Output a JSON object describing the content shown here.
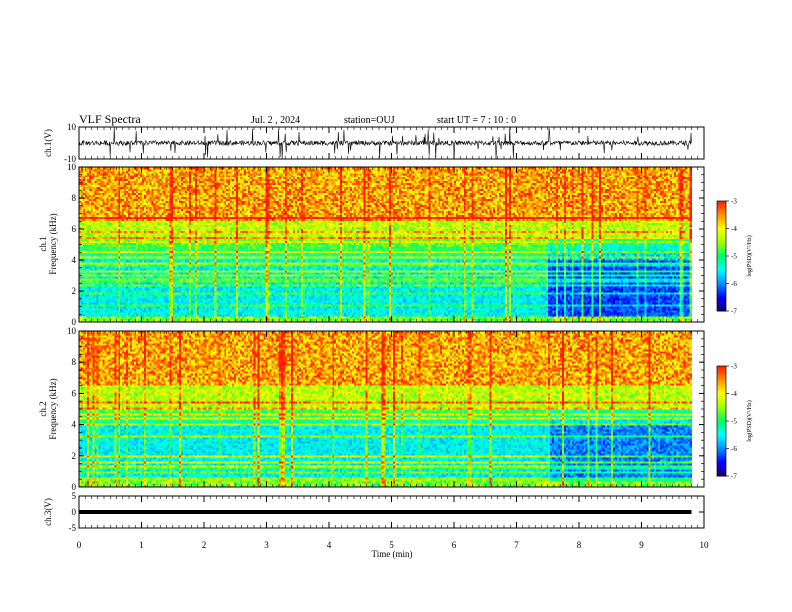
{
  "header": {
    "title": "VLF Spectra",
    "date": "Jul. 2 , 2024",
    "station": "station=OUJ",
    "start": "start UT =  7 : 10 : 0"
  },
  "colors": {
    "bg": "#ffffff",
    "axis": "#000000",
    "trace": "#000000",
    "colormap": [
      "#1a0070",
      "#0000ff",
      "#0090ff",
      "#00ffff",
      "#00ff60",
      "#a0ff00",
      "#ffff00",
      "#ff9000",
      "#ff1a00",
      "#ffffff"
    ]
  },
  "chart_data": [
    {
      "id": "ch1-waveform",
      "type": "line",
      "ylabel": "ch.1(V)",
      "ylim": [
        -10,
        10
      ],
      "yticks": [
        "10",
        "-10"
      ],
      "xlim": [
        0,
        10
      ],
      "baseline": 0,
      "amplitude_typical": 1.5,
      "spike_max": 10
    },
    {
      "id": "ch1-spectrogram",
      "type": "heatmap",
      "ylabel": "ch.1",
      "ylabel2": "Frequency (kHz)",
      "ylim": [
        0,
        10
      ],
      "yticks": [
        "0",
        "2",
        "4",
        "6",
        "8",
        "10"
      ],
      "xlim": [
        0,
        10
      ],
      "data_end_min": 9.8,
      "colorbar": {
        "label": "log(PSD)(V²/Hz)",
        "range": [
          -7,
          -3
        ],
        "ticks": [
          "-3",
          "-4",
          "-5",
          "-6",
          "-7"
        ]
      },
      "low_band_khz": [
        0,
        4
      ],
      "high_band_khz": [
        6,
        10
      ]
    },
    {
      "id": "ch2-spectrogram",
      "type": "heatmap",
      "ylabel": "ch.2",
      "ylabel2": "Frequency (kHz)",
      "ylim": [
        0,
        10
      ],
      "yticks": [
        "0",
        "2",
        "4",
        "6",
        "8",
        "10"
      ],
      "xlim": [
        0,
        10
      ],
      "data_end_min": 9.8,
      "colorbar": {
        "label": "log(PSD)(V²/Hz)",
        "range": [
          -7,
          -3
        ],
        "ticks": [
          "-3",
          "-4",
          "-5",
          "-6",
          "-7"
        ]
      },
      "low_band_khz": [
        0,
        5
      ],
      "high_band_khz": [
        6,
        10
      ]
    },
    {
      "id": "ch3-waveform",
      "type": "line",
      "ylabel": "ch.3(V)",
      "ylim": [
        -5,
        5
      ],
      "yticks": [
        "5",
        "0",
        "-5"
      ],
      "xlim": [
        0,
        10
      ],
      "baseline": 0,
      "xlabel": "Time  (min)",
      "xticks": [
        "0",
        "1",
        "2",
        "3",
        "4",
        "5",
        "6",
        "7",
        "8",
        "9",
        "10"
      ]
    }
  ]
}
